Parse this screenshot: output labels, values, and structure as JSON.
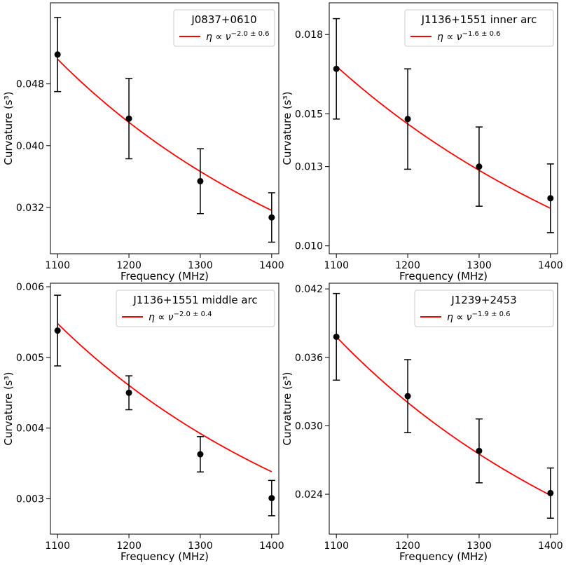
{
  "colors": {
    "fit": "#ff0000",
    "points": "#000000",
    "axes": "#000000"
  },
  "chart_data": [
    {
      "type": "scatter",
      "title": "",
      "legend_title": "J0837+0610",
      "legend_label": "η ∝ ν^{−2.0 ± 0.6}",
      "legend_base": "η ∝ ν",
      "legend_exp": "−2.0 ± 0.6",
      "legend_placement": "top-right",
      "xlabel": "Frequency (MHz)",
      "ylabel": "Curvature (s³)",
      "xlim": [
        1090,
        1410
      ],
      "ylim": [
        0.026,
        0.0585
      ],
      "xticks": [
        1100,
        1200,
        1300,
        1400
      ],
      "yticks": [
        0.032,
        0.04,
        0.048
      ],
      "ytick_labels": [
        "0.032",
        "0.040",
        "0.048"
      ],
      "x": [
        1100,
        1200,
        1300,
        1400
      ],
      "y": [
        0.0518,
        0.0435,
        0.0354,
        0.0307
      ],
      "yerr_low": [
        0.0048,
        0.0052,
        0.0042,
        0.0032
      ],
      "yerr_high": [
        0.0048,
        0.0052,
        0.0042,
        0.0032
      ],
      "fit": {
        "amplitude_at_1100": 0.0512,
        "exponent": -2.0
      },
      "grid": false
    },
    {
      "type": "scatter",
      "title": "",
      "legend_title": "J1136+1551 inner arc",
      "legend_label": "η ∝ ν^{−1.6 ± 0.6}",
      "legend_base": "η ∝ ν",
      "legend_exp": "−1.6 ± 0.6",
      "legend_placement": "top-right",
      "xlabel": "Frequency (MHz)",
      "ylabel": "Curvature (s³)",
      "xlim": [
        1090,
        1410
      ],
      "ylim": [
        0.0097,
        0.0192
      ],
      "xticks": [
        1100,
        1200,
        1300,
        1400
      ],
      "yticks": [
        0.01,
        0.013,
        0.015,
        0.018
      ],
      "ytick_labels": [
        "0.010",
        "0.013",
        "0.015",
        "0.018"
      ],
      "x": [
        1100,
        1200,
        1300,
        1400
      ],
      "y": [
        0.0167,
        0.0148,
        0.013,
        0.0118
      ],
      "yerr_low": [
        0.0019,
        0.0019,
        0.0015,
        0.0013
      ],
      "yerr_high": [
        0.0019,
        0.0019,
        0.0015,
        0.0013
      ],
      "fit": {
        "amplitude_at_1100": 0.0168,
        "exponent": -1.6
      },
      "grid": false
    },
    {
      "type": "scatter",
      "title": "",
      "legend_title": "J1136+1551 middle arc",
      "legend_label": "η ∝ ν^{−2.0 ± 0.4}",
      "legend_base": "η ∝ ν",
      "legend_exp": "−2.0 ± 0.4",
      "legend_placement": "top-right",
      "xlabel": "Frequency (MHz)",
      "ylabel": "Curvature (s³)",
      "xlim": [
        1090,
        1410
      ],
      "ylim": [
        0.0025,
        0.00605
      ],
      "xticks": [
        1100,
        1200,
        1300,
        1400
      ],
      "yticks": [
        0.003,
        0.004,
        0.005,
        0.006
      ],
      "ytick_labels": [
        "0.003",
        "0.004",
        "0.005",
        "0.006"
      ],
      "x": [
        1100,
        1200,
        1300,
        1400
      ],
      "y": [
        0.00538,
        0.0045,
        0.00363,
        0.00301
      ],
      "yerr_low": [
        0.0005,
        0.00024,
        0.00025,
        0.00025
      ],
      "yerr_high": [
        0.0005,
        0.00024,
        0.00025,
        0.00025
      ],
      "fit": {
        "amplitude_at_1100": 0.00548,
        "exponent": -2.0
      },
      "grid": false
    },
    {
      "type": "scatter",
      "title": "",
      "legend_title": "J1239+2453",
      "legend_label": "η ∝ ν^{−1.9 ± 0.6}",
      "legend_base": "η ∝ ν",
      "legend_exp": "−1.9 ± 0.6",
      "legend_placement": "top-right",
      "xlabel": "Frequency (MHz)",
      "ylabel": "Curvature (s³)",
      "xlim": [
        1090,
        1410
      ],
      "ylim": [
        0.0205,
        0.0425
      ],
      "xticks": [
        1100,
        1200,
        1300,
        1400
      ],
      "yticks": [
        0.024,
        0.03,
        0.036,
        0.042
      ],
      "ytick_labels": [
        "0.024",
        "0.030",
        "0.036",
        "0.042"
      ],
      "x": [
        1100,
        1200,
        1300,
        1400
      ],
      "y": [
        0.0378,
        0.0326,
        0.0278,
        0.0241
      ],
      "yerr_low": [
        0.0038,
        0.0032,
        0.0028,
        0.0022
      ],
      "yerr_high": [
        0.0038,
        0.0032,
        0.0028,
        0.0022
      ],
      "fit": {
        "amplitude_at_1100": 0.0378,
        "exponent": -1.9
      },
      "grid": false
    }
  ]
}
